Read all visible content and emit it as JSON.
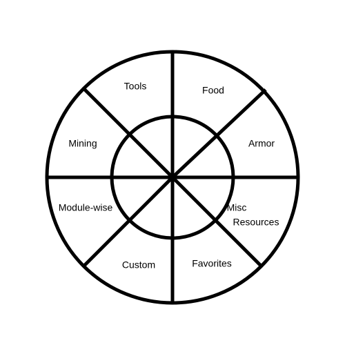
{
  "wheel": {
    "segments": [
      {
        "key": "tools",
        "label": "Tools"
      },
      {
        "key": "food",
        "label": "Food"
      },
      {
        "key": "armor",
        "label": "Armor"
      },
      {
        "key": "misc",
        "label": "Misc",
        "label_line2": "Resources"
      },
      {
        "key": "favorites",
        "label": "Favorites"
      },
      {
        "key": "custom",
        "label": "Custom"
      },
      {
        "key": "module-wise",
        "label": "Module-wise"
      },
      {
        "key": "mining",
        "label": "Mining"
      }
    ]
  },
  "colors": {
    "background": "#ffffff",
    "stroke": "#000000",
    "text": "#000000"
  }
}
